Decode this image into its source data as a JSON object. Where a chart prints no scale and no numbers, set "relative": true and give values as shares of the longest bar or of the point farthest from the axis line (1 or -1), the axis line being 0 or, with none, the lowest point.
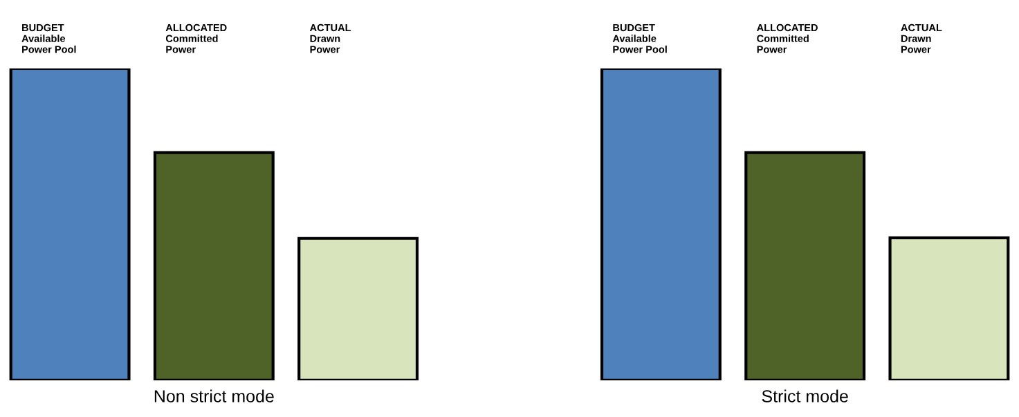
{
  "chart_data": [
    {
      "type": "bar",
      "relative": true,
      "title": "Non strict mode",
      "categories": [
        "BUDGET\nAvailable\nPower Pool",
        "ALLOCATED\nCommitted\nPower",
        "ACTUAL\nDrawn\nPower"
      ],
      "values": [
        1,
        0.73,
        0.455
      ],
      "colors": [
        "#4f81bd",
        "#4f6228",
        "#d7e4bc"
      ]
    },
    {
      "type": "bar",
      "relative": true,
      "title": "Strict mode",
      "categories": [
        "BUDGET\nAvailable\nPower Pool",
        "ALLOCATED\nCommitted\nPower",
        "ACTUAL\nDrawn\nPower"
      ],
      "values": [
        1,
        0.73,
        0.457
      ],
      "colors": [
        "#4f81bd",
        "#4f6228",
        "#d7e4bc"
      ]
    }
  ]
}
